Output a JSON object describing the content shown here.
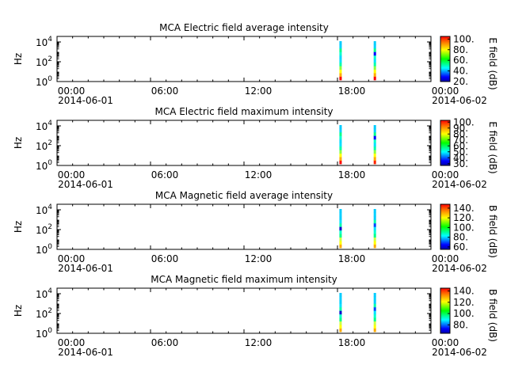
{
  "chart_data": [
    {
      "type": "heatmap",
      "title": "MCA  Electric field average intensity",
      "ylabel": "Hz",
      "colorbar_label": "E field (dB)",
      "colorbar_ticks": [
        "20.",
        "40.",
        "60.",
        "80.",
        "100."
      ],
      "colorbar_range": [
        20,
        105
      ],
      "y_ticks": [
        {
          "base": "10",
          "exp": "0"
        },
        {
          "base": "10",
          "exp": "2"
        },
        {
          "base": "10",
          "exp": "4"
        }
      ],
      "x_ticks": [
        "00:00",
        "06:00",
        "12:00",
        "18:00",
        "00:00"
      ],
      "x_dates": [
        "2014-06-01",
        "2014-06-02"
      ],
      "bursts": [
        {
          "time_h": 18.2,
          "color_bands": [
            "#ff0000",
            "#ffaa00",
            "#ffff00",
            "#88ff44",
            "#00ffaa",
            "#00e0ff",
            "#00d8ff",
            "#00ffcc",
            "#00ff88",
            "#00d0ff",
            "#00ccff"
          ]
        },
        {
          "time_h": 20.4,
          "color_bands": [
            "#ff0000",
            "#ffaa00",
            "#ffff00",
            "#88ff44",
            "#00ffaa",
            "#00e0ff",
            "#00ffcc",
            "#0000ff",
            "#00ff88",
            "#00d0ff",
            "#00ccff"
          ]
        }
      ]
    },
    {
      "type": "heatmap",
      "title": "MCA  Electric field maximum intensity",
      "ylabel": "Hz",
      "colorbar_label": "E field (dB)",
      "colorbar_ticks": [
        "30.",
        "40.",
        "50.",
        "60.",
        "70.",
        "80.",
        "90.",
        "100."
      ],
      "colorbar_range": [
        27,
        103
      ],
      "y_ticks": [
        {
          "base": "10",
          "exp": "0"
        },
        {
          "base": "10",
          "exp": "2"
        },
        {
          "base": "10",
          "exp": "4"
        }
      ],
      "x_ticks": [
        "00:00",
        "06:00",
        "12:00",
        "18:00",
        "00:00"
      ],
      "x_dates": [
        "2014-06-01",
        "2014-06-02"
      ],
      "bursts": [
        {
          "time_h": 18.2,
          "color_bands": [
            "#ff0000",
            "#ffaa00",
            "#ffff00",
            "#88ff44",
            "#00ffaa",
            "#00e0ff",
            "#00d8ff",
            "#00ffcc",
            "#00ff88",
            "#00d0ff",
            "#00ccff"
          ]
        },
        {
          "time_h": 20.4,
          "color_bands": [
            "#ff2200",
            "#ffaa00",
            "#ffff00",
            "#88ff44",
            "#00ffaa",
            "#00e0ff",
            "#00ffcc",
            "#0000ff",
            "#00ff88",
            "#00d0ff",
            "#00ccff"
          ]
        }
      ]
    },
    {
      "type": "heatmap",
      "title": "MCA  Magnetic field average intensity",
      "ylabel": "Hz",
      "colorbar_label": "B field (dB)",
      "colorbar_ticks": [
        "60.",
        "80.",
        "100.",
        "120.",
        "140."
      ],
      "colorbar_range": [
        55,
        148
      ],
      "y_ticks": [
        {
          "base": "10",
          "exp": "0"
        },
        {
          "base": "10",
          "exp": "2"
        },
        {
          "base": "10",
          "exp": "4"
        }
      ],
      "x_ticks": [
        "00:00",
        "06:00",
        "12:00",
        "18:00",
        "00:00"
      ],
      "x_dates": [
        "2014-06-01",
        "2014-06-02"
      ],
      "bursts": [
        {
          "time_h": 18.2,
          "color_bands": [
            "#ffaa00",
            "#ffff00",
            "#ccff44",
            "#00ff88",
            "#00ffcc",
            "#0000cc",
            "#00ffaa",
            "#00e0ff",
            "#00ccff",
            "#00d0ff",
            "#00ccff"
          ]
        },
        {
          "time_h": 20.4,
          "color_bands": [
            "#ffaa00",
            "#ffff00",
            "#ccff44",
            "#00ff88",
            "#00ffcc",
            "#00e0ff",
            "#0044ff",
            "#00ffaa",
            "#00ccff",
            "#00d0ff",
            "#00ccff"
          ]
        }
      ]
    },
    {
      "type": "heatmap",
      "title": "MCA  Magnetic field maximum intensity",
      "ylabel": "Hz",
      "colorbar_label": "B field (dB)",
      "colorbar_ticks": [
        "80.",
        "100.",
        "120.",
        "140."
      ],
      "colorbar_range": [
        65,
        145
      ],
      "y_ticks": [
        {
          "base": "10",
          "exp": "0"
        },
        {
          "base": "10",
          "exp": "2"
        },
        {
          "base": "10",
          "exp": "4"
        }
      ],
      "x_ticks": [
        "00:00",
        "06:00",
        "12:00",
        "18:00",
        "00:00"
      ],
      "x_dates": [
        "2014-06-01",
        "2014-06-02"
      ],
      "bursts": [
        {
          "time_h": 18.2,
          "color_bands": [
            "#ffaa00",
            "#ffff00",
            "#ccff44",
            "#00ff88",
            "#00ffcc",
            "#0000cc",
            "#00ffaa",
            "#00e0ff",
            "#00ccff",
            "#00d0ff",
            "#00ccff"
          ]
        },
        {
          "time_h": 20.4,
          "color_bands": [
            "#ffaa00",
            "#ffff00",
            "#ccff44",
            "#00ff88",
            "#00ffcc",
            "#00e0ff",
            "#0044ff",
            "#00ffaa",
            "#00ccff",
            "#00d0ff",
            "#00ccff"
          ]
        }
      ]
    }
  ]
}
